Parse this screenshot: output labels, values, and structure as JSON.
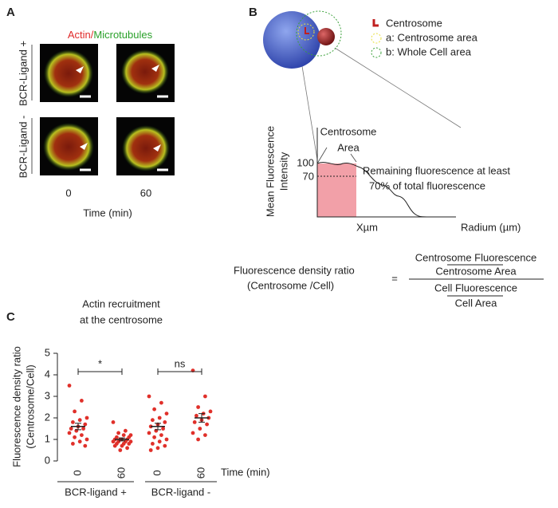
{
  "panel_a": {
    "label": "A",
    "title_parts": [
      "Actin/",
      "Microtubules"
    ],
    "row_labels": [
      "BCR-Ligand +",
      "BCR-Ligand -"
    ],
    "column_labels": [
      "0",
      "60"
    ],
    "x_label": "Time (min)"
  },
  "panel_b": {
    "label": "B",
    "legend": [
      "Centrosome",
      "a: Centrosome area",
      "b: Whole Cell area"
    ],
    "graph": {
      "y_label": [
        "Mean Fluorescence",
        "Intensity"
      ],
      "ticks": [
        "100",
        "70"
      ],
      "region_label": [
        "Centrosome",
        "Area"
      ],
      "note": [
        "Remaining fluorescence at least",
        "70% of total fluorescence"
      ],
      "x_mark": "Xµm",
      "x_label": "Radium (µm)"
    },
    "formula": {
      "left": [
        "Fluorescence density ratio",
        "(Centrosome /Cell)"
      ],
      "equals": "=",
      "terms": [
        "Centrosome Fluorescence",
        "Centrosome Area",
        "Cell Fluorescence",
        "Cell Area"
      ]
    }
  },
  "chart_data": {
    "type": "dotplot",
    "label": "C",
    "title": [
      "Actin recruitment",
      "at the centrosome"
    ],
    "y_label": [
      "Fluorescence density ratio",
      "(Centrosome/Cell)"
    ],
    "categories": [
      "0",
      "60",
      "0",
      "60"
    ],
    "x_label": "Time (min)",
    "groups": [
      "BCR-ligand +",
      "BCR-ligand -"
    ],
    "color": "#e0302a",
    "values": [
      [
        3.5,
        2.8,
        2.3,
        2.0,
        1.9,
        1.8,
        1.7,
        1.6,
        1.5,
        1.5,
        1.4,
        1.3,
        1.2,
        1.1,
        1.0,
        0.9,
        0.8,
        0.7
      ],
      [
        1.8,
        1.4,
        1.3,
        1.2,
        1.2,
        1.1,
        1.1,
        1.0,
        1.0,
        1.0,
        1.0,
        0.9,
        0.9,
        0.9,
        0.9,
        0.8,
        0.8,
        0.8,
        0.7,
        0.7,
        0.6,
        0.5
      ],
      [
        3.0,
        2.7,
        2.4,
        2.2,
        2.0,
        1.9,
        1.8,
        1.7,
        1.6,
        1.5,
        1.4,
        1.3,
        1.2,
        1.1,
        1.0,
        0.9,
        0.8,
        0.7,
        0.6,
        0.5
      ],
      [
        4.2,
        3.0,
        2.5,
        2.3,
        2.2,
        2.1,
        2.0,
        1.9,
        1.8,
        1.7,
        1.5,
        1.3,
        1.2,
        1.0
      ]
    ],
    "means": [
      1.6,
      1.0,
      1.6,
      2.0
    ],
    "sems": [
      0.15,
      0.07,
      0.15,
      0.2
    ],
    "significance": [
      "*",
      "ns"
    ],
    "ylim": [
      0,
      5
    ],
    "yticks": [
      0,
      1,
      2,
      3,
      4,
      5
    ]
  }
}
